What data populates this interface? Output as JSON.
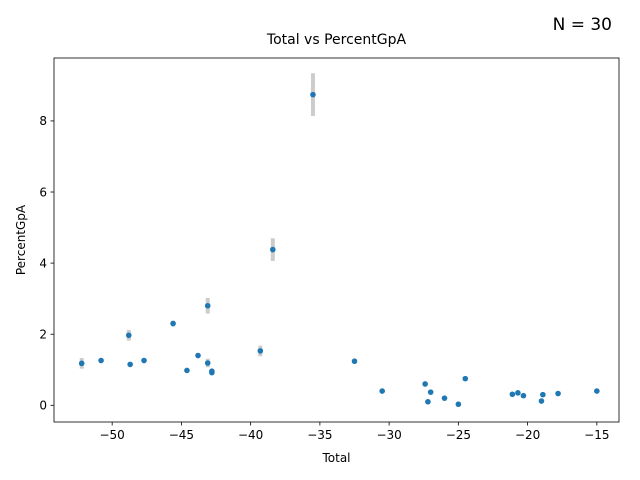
{
  "chart_data": {
    "type": "scatter",
    "title": "Total vs PercentGpA",
    "annotation": "N = 30",
    "xlabel": "Total",
    "ylabel": "PercentGpA",
    "xlim": [
      -54.2,
      -13.4
    ],
    "ylim": [
      -0.47,
      9.77
    ],
    "xticks": [
      -50,
      -45,
      -40,
      -35,
      -30,
      -25,
      -20,
      -15
    ],
    "yticks": [
      0,
      2,
      4,
      6,
      8
    ],
    "grid": false,
    "point_color": "#1f77b4",
    "errorbar_color": "#cccccc",
    "points": [
      {
        "x": -52.2,
        "y": 1.18,
        "err": 0.15
      },
      {
        "x": -50.8,
        "y": 1.26,
        "err": 0
      },
      {
        "x": -48.8,
        "y": 1.97,
        "err": 0.15
      },
      {
        "x": -48.7,
        "y": 1.15,
        "err": 0
      },
      {
        "x": -47.7,
        "y": 1.26,
        "err": 0
      },
      {
        "x": -45.6,
        "y": 2.3,
        "err": 0.08
      },
      {
        "x": -44.6,
        "y": 0.98,
        "err": 0
      },
      {
        "x": -43.8,
        "y": 1.4,
        "err": 0
      },
      {
        "x": -43.1,
        "y": 2.8,
        "err": 0.22
      },
      {
        "x": -43.1,
        "y": 1.19,
        "err": 0.12
      },
      {
        "x": -42.8,
        "y": 0.96,
        "err": 0
      },
      {
        "x": -42.8,
        "y": 0.92,
        "err": 0
      },
      {
        "x": -39.3,
        "y": 1.53,
        "err": 0.15
      },
      {
        "x": -38.4,
        "y": 4.38,
        "err": 0.32
      },
      {
        "x": -35.5,
        "y": 8.74,
        "err": 0.6
      },
      {
        "x": -32.5,
        "y": 1.24,
        "err": 0.06
      },
      {
        "x": -30.5,
        "y": 0.4,
        "err": 0
      },
      {
        "x": -27.4,
        "y": 0.6,
        "err": 0
      },
      {
        "x": -27.0,
        "y": 0.37,
        "err": 0
      },
      {
        "x": -27.2,
        "y": 0.1,
        "err": 0
      },
      {
        "x": -26.0,
        "y": 0.2,
        "err": 0
      },
      {
        "x": -25.0,
        "y": 0.03,
        "err": 0
      },
      {
        "x": -24.5,
        "y": 0.75,
        "err": 0
      },
      {
        "x": -21.1,
        "y": 0.31,
        "err": 0
      },
      {
        "x": -20.7,
        "y": 0.35,
        "err": 0
      },
      {
        "x": -20.3,
        "y": 0.27,
        "err": 0
      },
      {
        "x": -19.0,
        "y": 0.12,
        "err": 0
      },
      {
        "x": -18.9,
        "y": 0.3,
        "err": 0
      },
      {
        "x": -17.8,
        "y": 0.33,
        "err": 0
      },
      {
        "x": -15.0,
        "y": 0.4,
        "err": 0
      }
    ]
  }
}
